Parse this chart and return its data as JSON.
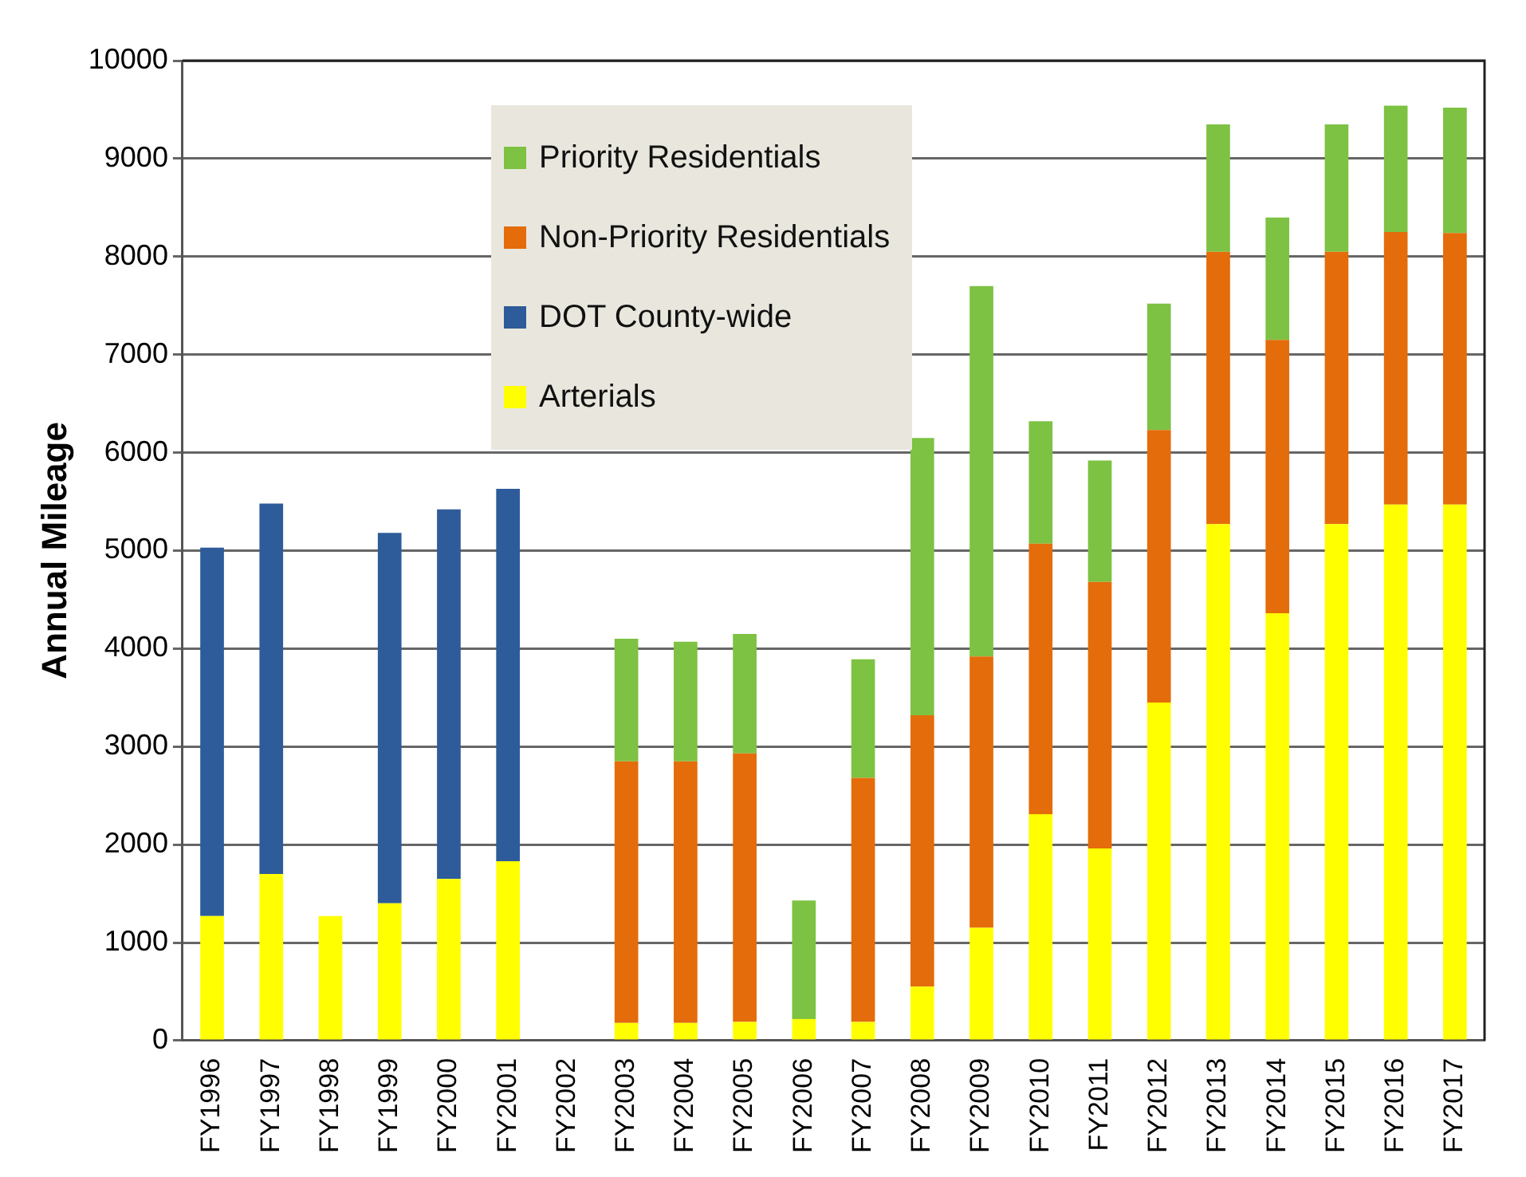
{
  "chart_data": {
    "type": "bar",
    "stacked": true,
    "ylabel": "Annual Mileage",
    "categories": [
      "FY1996",
      "FY1997",
      "FY1998",
      "FY1999",
      "FY2000",
      "FY2001",
      "FY2002",
      "FY2003",
      "FY2004",
      "FY2005",
      "FY2006",
      "FY2007",
      "FY2008",
      "FY2009",
      "FY2010",
      "FY2011",
      "FY2012",
      "FY2013",
      "FY2014",
      "FY2015",
      "FY2016",
      "FY2017"
    ],
    "series": [
      {
        "name": "Arterials",
        "color": "#ffff00",
        "values": [
          1270,
          1700,
          1270,
          1400,
          1650,
          1830,
          null,
          180,
          180,
          190,
          220,
          190,
          550,
          1150,
          2310,
          1960,
          3450,
          5270,
          4360,
          5270,
          5470,
          5470
        ]
      },
      {
        "name": "DOT County-wide",
        "color": "#2e5c9a",
        "values": [
          3760,
          3780,
          null,
          3780,
          3770,
          3800,
          null,
          null,
          null,
          null,
          null,
          null,
          null,
          null,
          null,
          null,
          null,
          null,
          null,
          null,
          null,
          null
        ]
      },
      {
        "name": "Non-Priority Residentials",
        "color": "#e46c0a",
        "values": [
          null,
          null,
          null,
          null,
          null,
          null,
          null,
          2670,
          2670,
          2740,
          null,
          2490,
          2770,
          2770,
          2760,
          2720,
          2780,
          2780,
          2790,
          2780,
          2780,
          2770
        ]
      },
      {
        "name": "Priority Residentials",
        "color": "#7dc242",
        "values": [
          null,
          null,
          null,
          null,
          null,
          null,
          null,
          1250,
          1220,
          1220,
          1210,
          1210,
          2830,
          3780,
          1250,
          1240,
          1290,
          1300,
          1250,
          1300,
          1290,
          1280
        ]
      }
    ],
    "ylim": [
      0,
      10000
    ],
    "yticks": [
      0,
      1000,
      2000,
      3000,
      4000,
      5000,
      6000,
      7000,
      8000,
      9000,
      10000
    ],
    "grid": "y",
    "legend": "top left"
  }
}
